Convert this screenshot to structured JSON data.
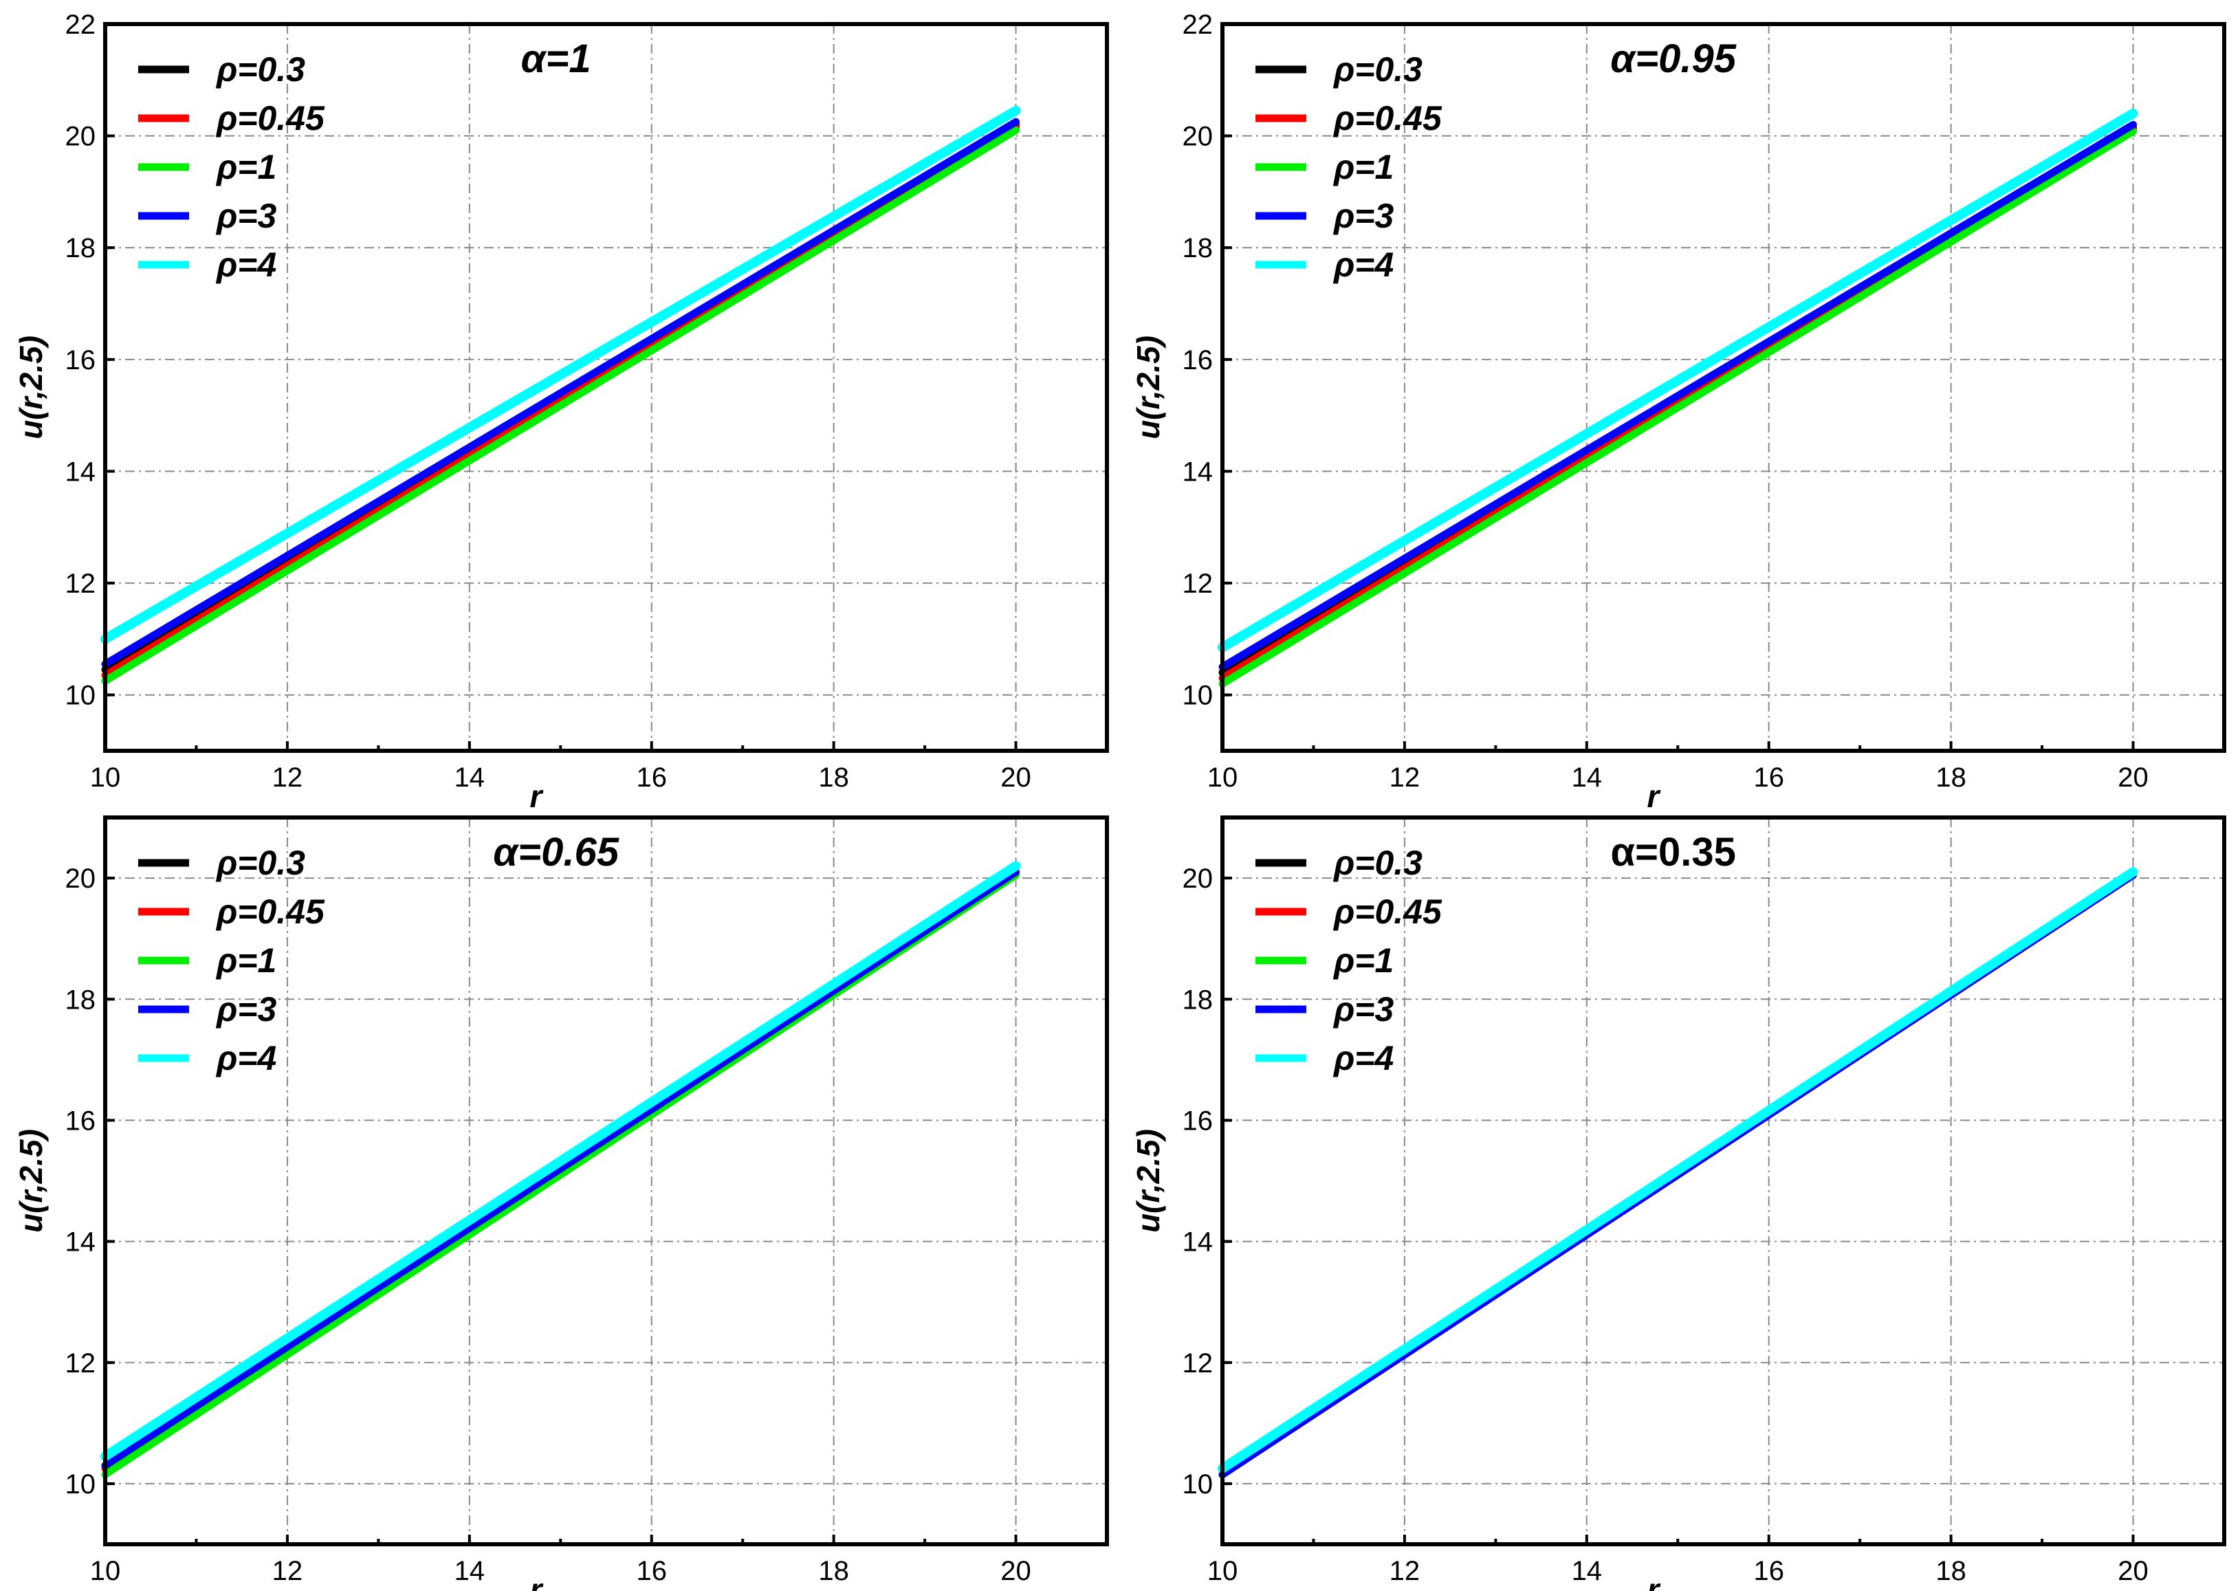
{
  "chart_data": [
    {
      "type": "line",
      "title": "α=1",
      "title_italic": true,
      "xlabel": "r",
      "ylabel": "u(r,2.5)",
      "xlim": [
        10,
        21
      ],
      "ylim": [
        9,
        22
      ],
      "xticks": [
        10,
        12,
        14,
        16,
        18,
        20
      ],
      "yticks": [
        10,
        12,
        14,
        16,
        18,
        20,
        22
      ],
      "grid": true,
      "legend_position": "top-left",
      "series": [
        {
          "name": "ρ=0.3",
          "color": "#000000",
          "x": [
            10,
            20
          ],
          "y": [
            10.45,
            20.2
          ]
        },
        {
          "name": "ρ=0.45",
          "color": "#ff0000",
          "x": [
            10,
            20
          ],
          "y": [
            10.35,
            20.15
          ]
        },
        {
          "name": "ρ=1",
          "color": "#00ee00",
          "x": [
            10,
            20
          ],
          "y": [
            10.25,
            20.1
          ]
        },
        {
          "name": "ρ=3",
          "color": "#0000ff",
          "x": [
            10,
            20
          ],
          "y": [
            10.55,
            20.25
          ]
        },
        {
          "name": "ρ=4",
          "color": "#00ffff",
          "x": [
            10,
            20
          ],
          "y": [
            11.0,
            20.45
          ]
        }
      ]
    },
    {
      "type": "line",
      "title": "α=0.95",
      "title_italic": true,
      "xlabel": "r",
      "ylabel": "u(r,2.5)",
      "xlim": [
        10,
        21
      ],
      "ylim": [
        9,
        22
      ],
      "xticks": [
        10,
        12,
        14,
        16,
        18,
        20
      ],
      "yticks": [
        10,
        12,
        14,
        16,
        18,
        20,
        22
      ],
      "grid": true,
      "legend_position": "top-left",
      "series": [
        {
          "name": "ρ=0.3",
          "color": "#000000",
          "x": [
            10,
            20
          ],
          "y": [
            10.4,
            20.15
          ]
        },
        {
          "name": "ρ=0.45",
          "color": "#ff0000",
          "x": [
            10,
            20
          ],
          "y": [
            10.3,
            20.12
          ]
        },
        {
          "name": "ρ=1",
          "color": "#00ee00",
          "x": [
            10,
            20
          ],
          "y": [
            10.2,
            20.08
          ]
        },
        {
          "name": "ρ=3",
          "color": "#0000ff",
          "x": [
            10,
            20
          ],
          "y": [
            10.5,
            20.2
          ]
        },
        {
          "name": "ρ=4",
          "color": "#00ffff",
          "x": [
            10,
            20
          ],
          "y": [
            10.85,
            20.4
          ]
        }
      ]
    },
    {
      "type": "line",
      "title": "α=0.65",
      "title_italic": true,
      "xlabel": "r",
      "ylabel": "u(r,2.5)",
      "xlim": [
        10,
        21
      ],
      "ylim": [
        9,
        21
      ],
      "xticks": [
        10,
        12,
        14,
        16,
        18,
        20
      ],
      "yticks": [
        10,
        12,
        14,
        16,
        18,
        20
      ],
      "grid": true,
      "legend_position": "top-left",
      "series": [
        {
          "name": "ρ=0.3",
          "color": "#000000",
          "x": [
            10,
            20
          ],
          "y": [
            10.3,
            20.1
          ]
        },
        {
          "name": "ρ=0.45",
          "color": "#ff0000",
          "x": [
            10,
            20
          ],
          "y": [
            10.25,
            20.08
          ]
        },
        {
          "name": "ρ=1",
          "color": "#00ee00",
          "x": [
            10,
            20
          ],
          "y": [
            10.15,
            20.05
          ]
        },
        {
          "name": "ρ=3",
          "color": "#0000ff",
          "x": [
            10,
            20
          ],
          "y": [
            10.3,
            20.1
          ]
        },
        {
          "name": "ρ=4",
          "color": "#00ffff",
          "x": [
            10,
            20
          ],
          "y": [
            10.45,
            20.2
          ]
        }
      ]
    },
    {
      "type": "line",
      "title": "α=0.35",
      "title_italic": false,
      "xlabel": "r",
      "ylabel": "u(r,2.5)",
      "xlim": [
        10,
        21
      ],
      "ylim": [
        9,
        21
      ],
      "xticks": [
        10,
        12,
        14,
        16,
        18,
        20
      ],
      "yticks": [
        10,
        12,
        14,
        16,
        18,
        20
      ],
      "grid": true,
      "legend_position": "top-left",
      "series": [
        {
          "name": "ρ=0.3",
          "color": "#000000",
          "x": [
            10,
            20
          ],
          "y": [
            10.15,
            20.05
          ]
        },
        {
          "name": "ρ=0.45",
          "color": "#ff0000",
          "x": [
            10,
            20
          ],
          "y": [
            10.15,
            20.05
          ]
        },
        {
          "name": "ρ=1",
          "color": "#00ee00",
          "x": [
            10,
            20
          ],
          "y": [
            10.15,
            20.05
          ]
        },
        {
          "name": "ρ=3",
          "color": "#0000ff",
          "x": [
            10,
            20
          ],
          "y": [
            10.15,
            20.05
          ]
        },
        {
          "name": "ρ=4",
          "color": "#00ffff",
          "x": [
            10,
            20
          ],
          "y": [
            10.25,
            20.1
          ]
        }
      ]
    }
  ]
}
